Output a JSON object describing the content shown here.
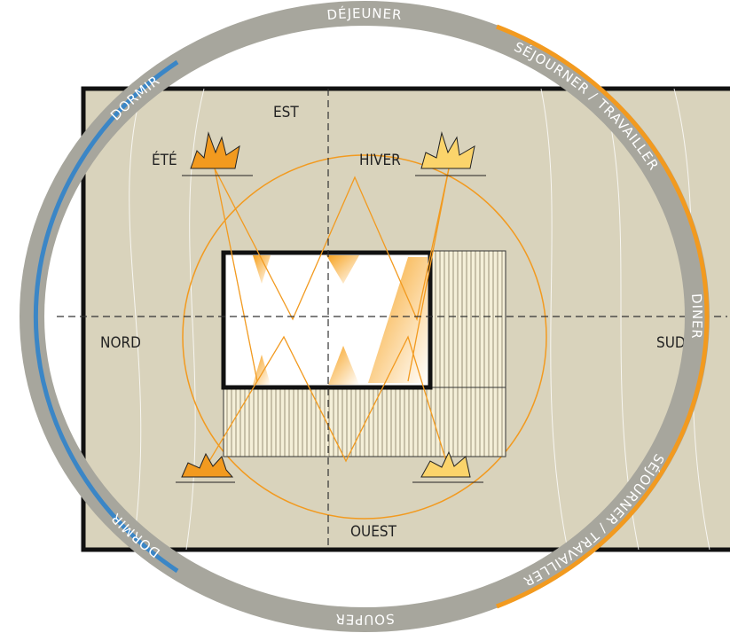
{
  "ring_labels": [
    "DÉJEUNER",
    "SÉJOURNER / TRAVAILLER",
    "DINER",
    "SÉJOURNER / TRAVAILLER",
    "SOUPER",
    "DORMIR",
    "DORMIR"
  ],
  "compass": {
    "east": "EST",
    "north": "NORD",
    "south": "SUD",
    "west": "OUEST"
  },
  "seasons": {
    "summer": "ÉTÉ",
    "winter": "HIVER"
  }
}
